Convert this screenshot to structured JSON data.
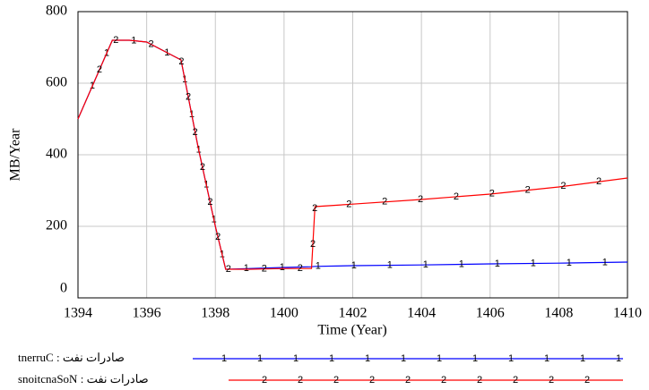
{
  "chart_data": {
    "type": "line",
    "xlabel": "Time (Year)",
    "ylabel": "MB/Year",
    "x": [
      1394,
      1394.5,
      1395,
      1395.5,
      1396,
      1396.5,
      1397,
      1397.5,
      1398,
      1398.3,
      1399,
      1400,
      1400.8,
      1400.9,
      1402,
      1404,
      1406,
      1408,
      1410
    ],
    "series": [
      {
        "name": "tnerruC : صادرات نفت",
        "marker": "1",
        "color": "#0000ff",
        "values": [
          500,
          610,
          720,
          720,
          715,
          690,
          665,
          420,
          200,
          80,
          82,
          85,
          87,
          88,
          90,
          92,
          95,
          97,
          100
        ]
      },
      {
        "name": "snoitcnaSoN : صادرات نفت",
        "marker": "2",
        "color": "#ff0000",
        "values": [
          500,
          610,
          720,
          720,
          715,
          690,
          665,
          420,
          200,
          80,
          80,
          82,
          82,
          255,
          262,
          275,
          290,
          310,
          335
        ]
      }
    ],
    "xlim": [
      1394,
      1410
    ],
    "xticks": [
      1394,
      1396,
      1398,
      1400,
      1402,
      1404,
      1406,
      1408,
      1410
    ],
    "ylim": [
      0,
      800
    ],
    "yticks": [
      0,
      200,
      400,
      600,
      800
    ],
    "grid": true
  }
}
